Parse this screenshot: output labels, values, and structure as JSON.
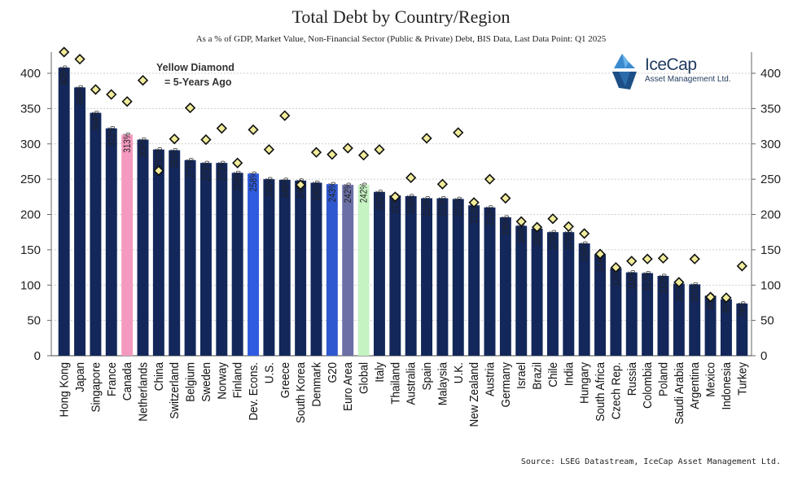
{
  "chart_data": {
    "type": "bar",
    "title": "Total Debt by Country/Region",
    "subtitle": "As a % of GDP, Market Value, Non-Financial Sector (Public & Private) Debt, BIS Data, Last Data Point: Q1 2025",
    "source": "Source: LSEG Datastream, IceCap Asset Management Ltd.",
    "legend_line1": "Yellow Diamond",
    "legend_line2": "= 5-Years Ago",
    "ylim": [
      0,
      430
    ],
    "yticks": [
      0,
      50,
      100,
      150,
      200,
      250,
      300,
      350,
      400
    ],
    "grid": true,
    "colors": {
      "default": "#13275a",
      "Canada": "#f49ac1",
      "Dev. Econs.": "#2f5ce0",
      "G20": "#2e58cf",
      "Euro Area": "#6b6fa6",
      "Global": "#c6f3c2",
      "diamond_fill": "#f1ec9b",
      "diamond_stroke": "#111111",
      "grid": "#bfbfbf"
    },
    "categories": [
      "Hong Kong",
      "Japan",
      "Singapore",
      "France",
      "Canada",
      "Netherlands",
      "China",
      "Switzerland",
      "Belgium",
      "Sweden",
      "Norway",
      "Finland",
      "Dev. Econs.",
      "U.S.",
      "Greece",
      "South Korea",
      "Denmark",
      "G20",
      "Euro Area",
      "Global",
      "Italy",
      "Thailand",
      "Australia",
      "Spain",
      "Malaysia",
      "U.K.",
      "New Zealand",
      "Austria",
      "Germany",
      "Israel",
      "Brazil",
      "Chile",
      "India",
      "Hungary",
      "South Africa",
      "Czech Rep.",
      "Russia",
      "Colombia",
      "Poland",
      "Saudi Arabia",
      "Argentina",
      "Mexico",
      "Indonesia",
      "Turkey"
    ],
    "values": [
      408,
      380,
      344,
      322,
      313,
      306,
      292,
      291,
      277,
      273,
      273,
      259,
      258,
      250,
      249,
      248,
      245,
      243,
      242,
      242,
      232,
      227,
      226,
      223,
      223,
      222,
      213,
      210,
      196,
      184,
      180,
      175,
      175,
      159,
      144,
      124,
      118,
      117,
      113,
      102,
      101,
      85,
      80,
      74
    ],
    "value_labels": [
      "408%",
      "380%",
      "344%",
      "322%",
      "313%",
      "306%",
      "292%",
      "291%",
      "277%",
      "273%",
      "273%",
      "259%",
      "258%",
      "250%",
      "249%",
      "248%",
      "245%",
      "243%",
      "242%",
      "242%",
      "232%",
      "227%",
      "226%",
      "223%",
      "223%",
      "222%",
      "213%",
      "210%",
      "196%",
      "184%",
      "180%",
      "175%",
      "175%",
      "159%",
      "144%",
      "124%",
      "118%",
      "117%",
      "113%",
      "102%",
      "101%",
      "85%",
      "80%",
      "74%"
    ],
    "five_years_ago": [
      466,
      420,
      377,
      370,
      360,
      390,
      262,
      307,
      351,
      306,
      322,
      273,
      320,
      292,
      340,
      242,
      288,
      285,
      294,
      284,
      292,
      225,
      252,
      308,
      243,
      316,
      217,
      250,
      223,
      190,
      182,
      194,
      183,
      173,
      144,
      125,
      134,
      137,
      138,
      104,
      137,
      83,
      82,
      127
    ]
  },
  "logo": {
    "name": "IceCap",
    "tagline": "Asset Management Ltd."
  }
}
